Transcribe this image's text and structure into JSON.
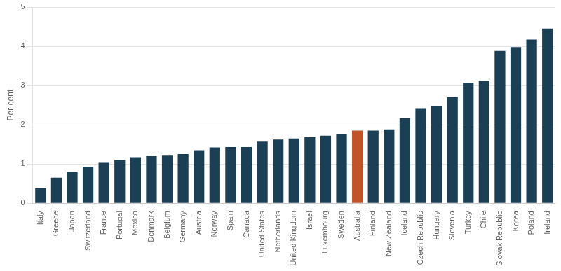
{
  "chart_data": {
    "type": "bar",
    "categories": [
      "Italy",
      "Greece",
      "Japan",
      "Switzerland",
      "France",
      "Portugal",
      "Mexico",
      "Denmark",
      "Belgium",
      "Germany",
      "Austria",
      "Norway",
      "Spain",
      "Canada",
      "United States",
      "Netherlands",
      "United Kingdom",
      "Israel",
      "Luxembourg",
      "Sweden",
      "Australia",
      "Finland",
      "New Zealand",
      "Iceland",
      "Czech Republic",
      "Hungary",
      "Slovenia",
      "Turkey",
      "Chile",
      "Slovak Republic",
      "Korea",
      "Poland",
      "Ireland"
    ],
    "values": [
      0.38,
      0.65,
      0.8,
      0.93,
      1.03,
      1.1,
      1.17,
      1.2,
      1.21,
      1.25,
      1.35,
      1.42,
      1.43,
      1.43,
      1.57,
      1.62,
      1.65,
      1.68,
      1.72,
      1.75,
      1.85,
      1.85,
      1.88,
      2.17,
      2.42,
      2.47,
      2.7,
      3.07,
      3.12,
      3.88,
      3.98,
      4.17,
      4.45
    ],
    "colors": [
      "#1b3f54",
      "#1b3f54",
      "#1b3f54",
      "#1b3f54",
      "#1b3f54",
      "#1b3f54",
      "#1b3f54",
      "#1b3f54",
      "#1b3f54",
      "#1b3f54",
      "#1b3f54",
      "#1b3f54",
      "#1b3f54",
      "#1b3f54",
      "#1b3f54",
      "#1b3f54",
      "#1b3f54",
      "#1b3f54",
      "#1b3f54",
      "#1b3f54",
      "#c0532a",
      "#1b3f54",
      "#1b3f54",
      "#1b3f54",
      "#1b3f54",
      "#1b3f54",
      "#1b3f54",
      "#1b3f54",
      "#1b3f54",
      "#1b3f54",
      "#1b3f54",
      "#1b3f54",
      "#1b3f54"
    ],
    "ylabel": "Per cent",
    "ylim": [
      0,
      5
    ],
    "yticks": [
      0,
      1,
      2,
      3,
      4,
      5
    ],
    "grid": true
  }
}
